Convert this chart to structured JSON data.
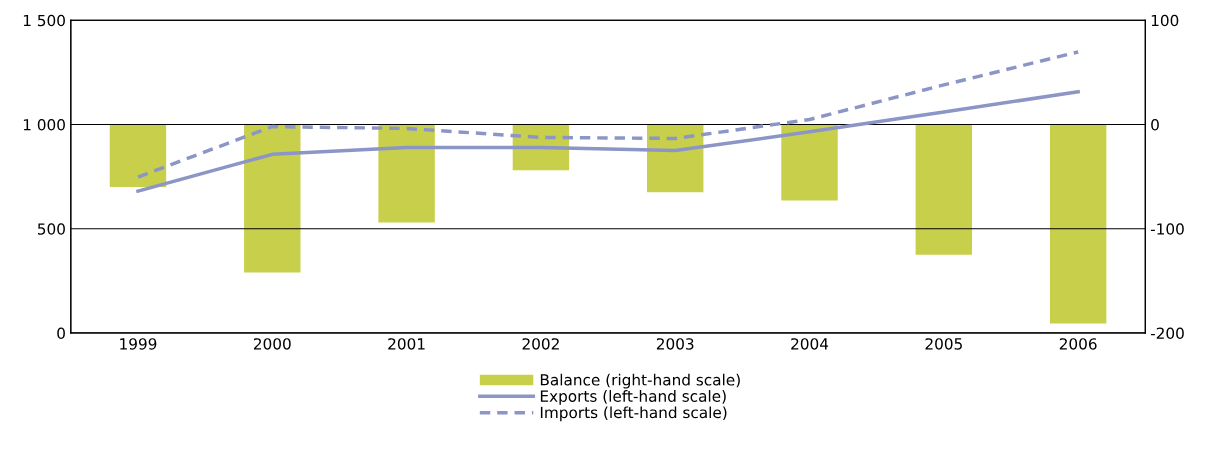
{
  "chart_data": {
    "type": "bar",
    "categories": [
      "1999",
      "2000",
      "2001",
      "2002",
      "2003",
      "2004",
      "2005",
      "2006"
    ],
    "series": [
      {
        "name": "Balance (right-hand scale)",
        "axis": "y2",
        "color": "#c8cf4a",
        "values": [
          -60,
          -142,
          -94,
          -44,
          -65,
          -73,
          -125,
          -191
        ]
      },
      {
        "name": "Exports (left-hand scale)",
        "type": "line",
        "color": "#8c96c6",
        "line_style": "solid",
        "values": [
          680,
          857,
          890,
          890,
          875,
          965,
          1060,
          1157
        ]
      },
      {
        "name": "Imports (left-hand scale)",
        "type": "line",
        "color": "#8c96c6",
        "line_style": "dashed",
        "values": [
          748,
          990,
          981,
          938,
          933,
          1024,
          1190,
          1348
        ]
      }
    ],
    "ylim": [
      0,
      1500
    ],
    "yticks": [
      {
        "value": 0,
        "label": "0"
      },
      {
        "value": 500,
        "label": "500"
      },
      {
        "value": 1000,
        "label": "1 000"
      },
      {
        "value": 1500,
        "label": "1 500"
      }
    ],
    "y2lim": [
      -200,
      100
    ],
    "y2ticks": [
      -200,
      -100,
      0,
      100
    ],
    "grid": "y",
    "legend": "bottom"
  }
}
